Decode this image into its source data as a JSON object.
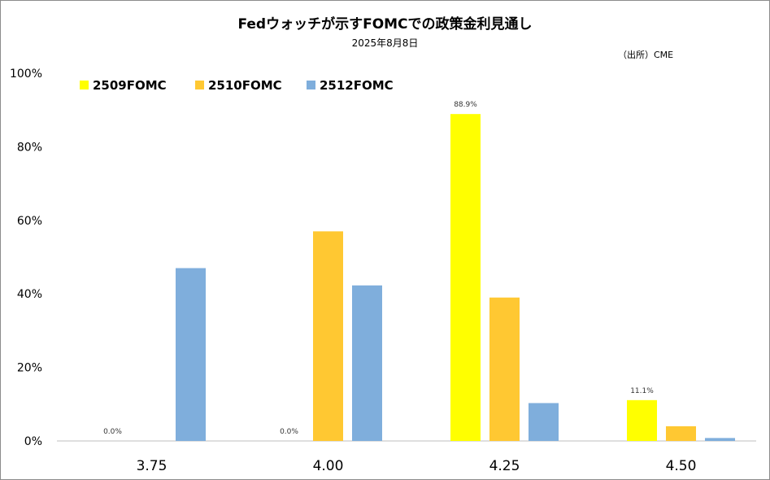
{
  "chart_data": {
    "type": "bar",
    "title": "Fedウォッチが示すFOMCでの政策金利見通し",
    "subtitle": "2025年8月8日",
    "source": "（出所）CME",
    "categories": [
      "3.75",
      "4.00",
      "4.25",
      "4.50"
    ],
    "series": [
      {
        "name": "2509FOMC",
        "color": "#ffff00",
        "values": [
          0.0,
          0.0,
          88.9,
          11.1
        ],
        "labels": [
          "0.0%",
          "0.0%",
          "88.9%",
          "11.1%"
        ]
      },
      {
        "name": "2510FOMC",
        "color": "#ffc832",
        "values": [
          0.0,
          57.0,
          39.0,
          4.0
        ],
        "labels": [
          "",
          "",
          "",
          ""
        ]
      },
      {
        "name": "2512FOMC",
        "color": "#7faedc",
        "values": [
          47.0,
          42.3,
          10.3,
          0.8
        ],
        "labels": [
          "",
          "",
          "",
          ""
        ]
      }
    ],
    "yticks": [
      "0%",
      "20%",
      "40%",
      "60%",
      "80%",
      "100%"
    ],
    "ylim": [
      0,
      100
    ],
    "grid": false,
    "legend": "top-left"
  }
}
